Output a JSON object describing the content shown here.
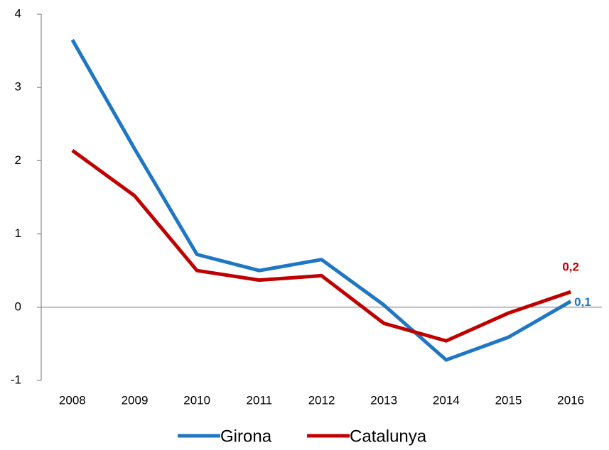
{
  "chart_data": {
    "type": "line",
    "categories": [
      "2008",
      "2009",
      "2010",
      "2011",
      "2012",
      "2013",
      "2014",
      "2015",
      "2016"
    ],
    "series": [
      {
        "name": "Girona",
        "color": "#1f77c4",
        "values": [
          3.65,
          2.16,
          0.72,
          0.5,
          0.65,
          0.03,
          -0.72,
          -0.41,
          0.08
        ],
        "value_labels": [
          null,
          null,
          null,
          null,
          null,
          null,
          null,
          null,
          "0,1"
        ]
      },
      {
        "name": "Catalunya",
        "color": "#c00000",
        "values": [
          2.14,
          1.52,
          0.5,
          0.37,
          0.43,
          -0.22,
          -0.46,
          -0.08,
          0.21
        ],
        "value_labels": [
          null,
          null,
          null,
          null,
          null,
          null,
          null,
          null,
          "0,2"
        ]
      }
    ],
    "ylim": [
      -1,
      4
    ],
    "yticks": [
      -1,
      0,
      1,
      2,
      3,
      4
    ],
    "grid": false,
    "legend": "bottom"
  }
}
